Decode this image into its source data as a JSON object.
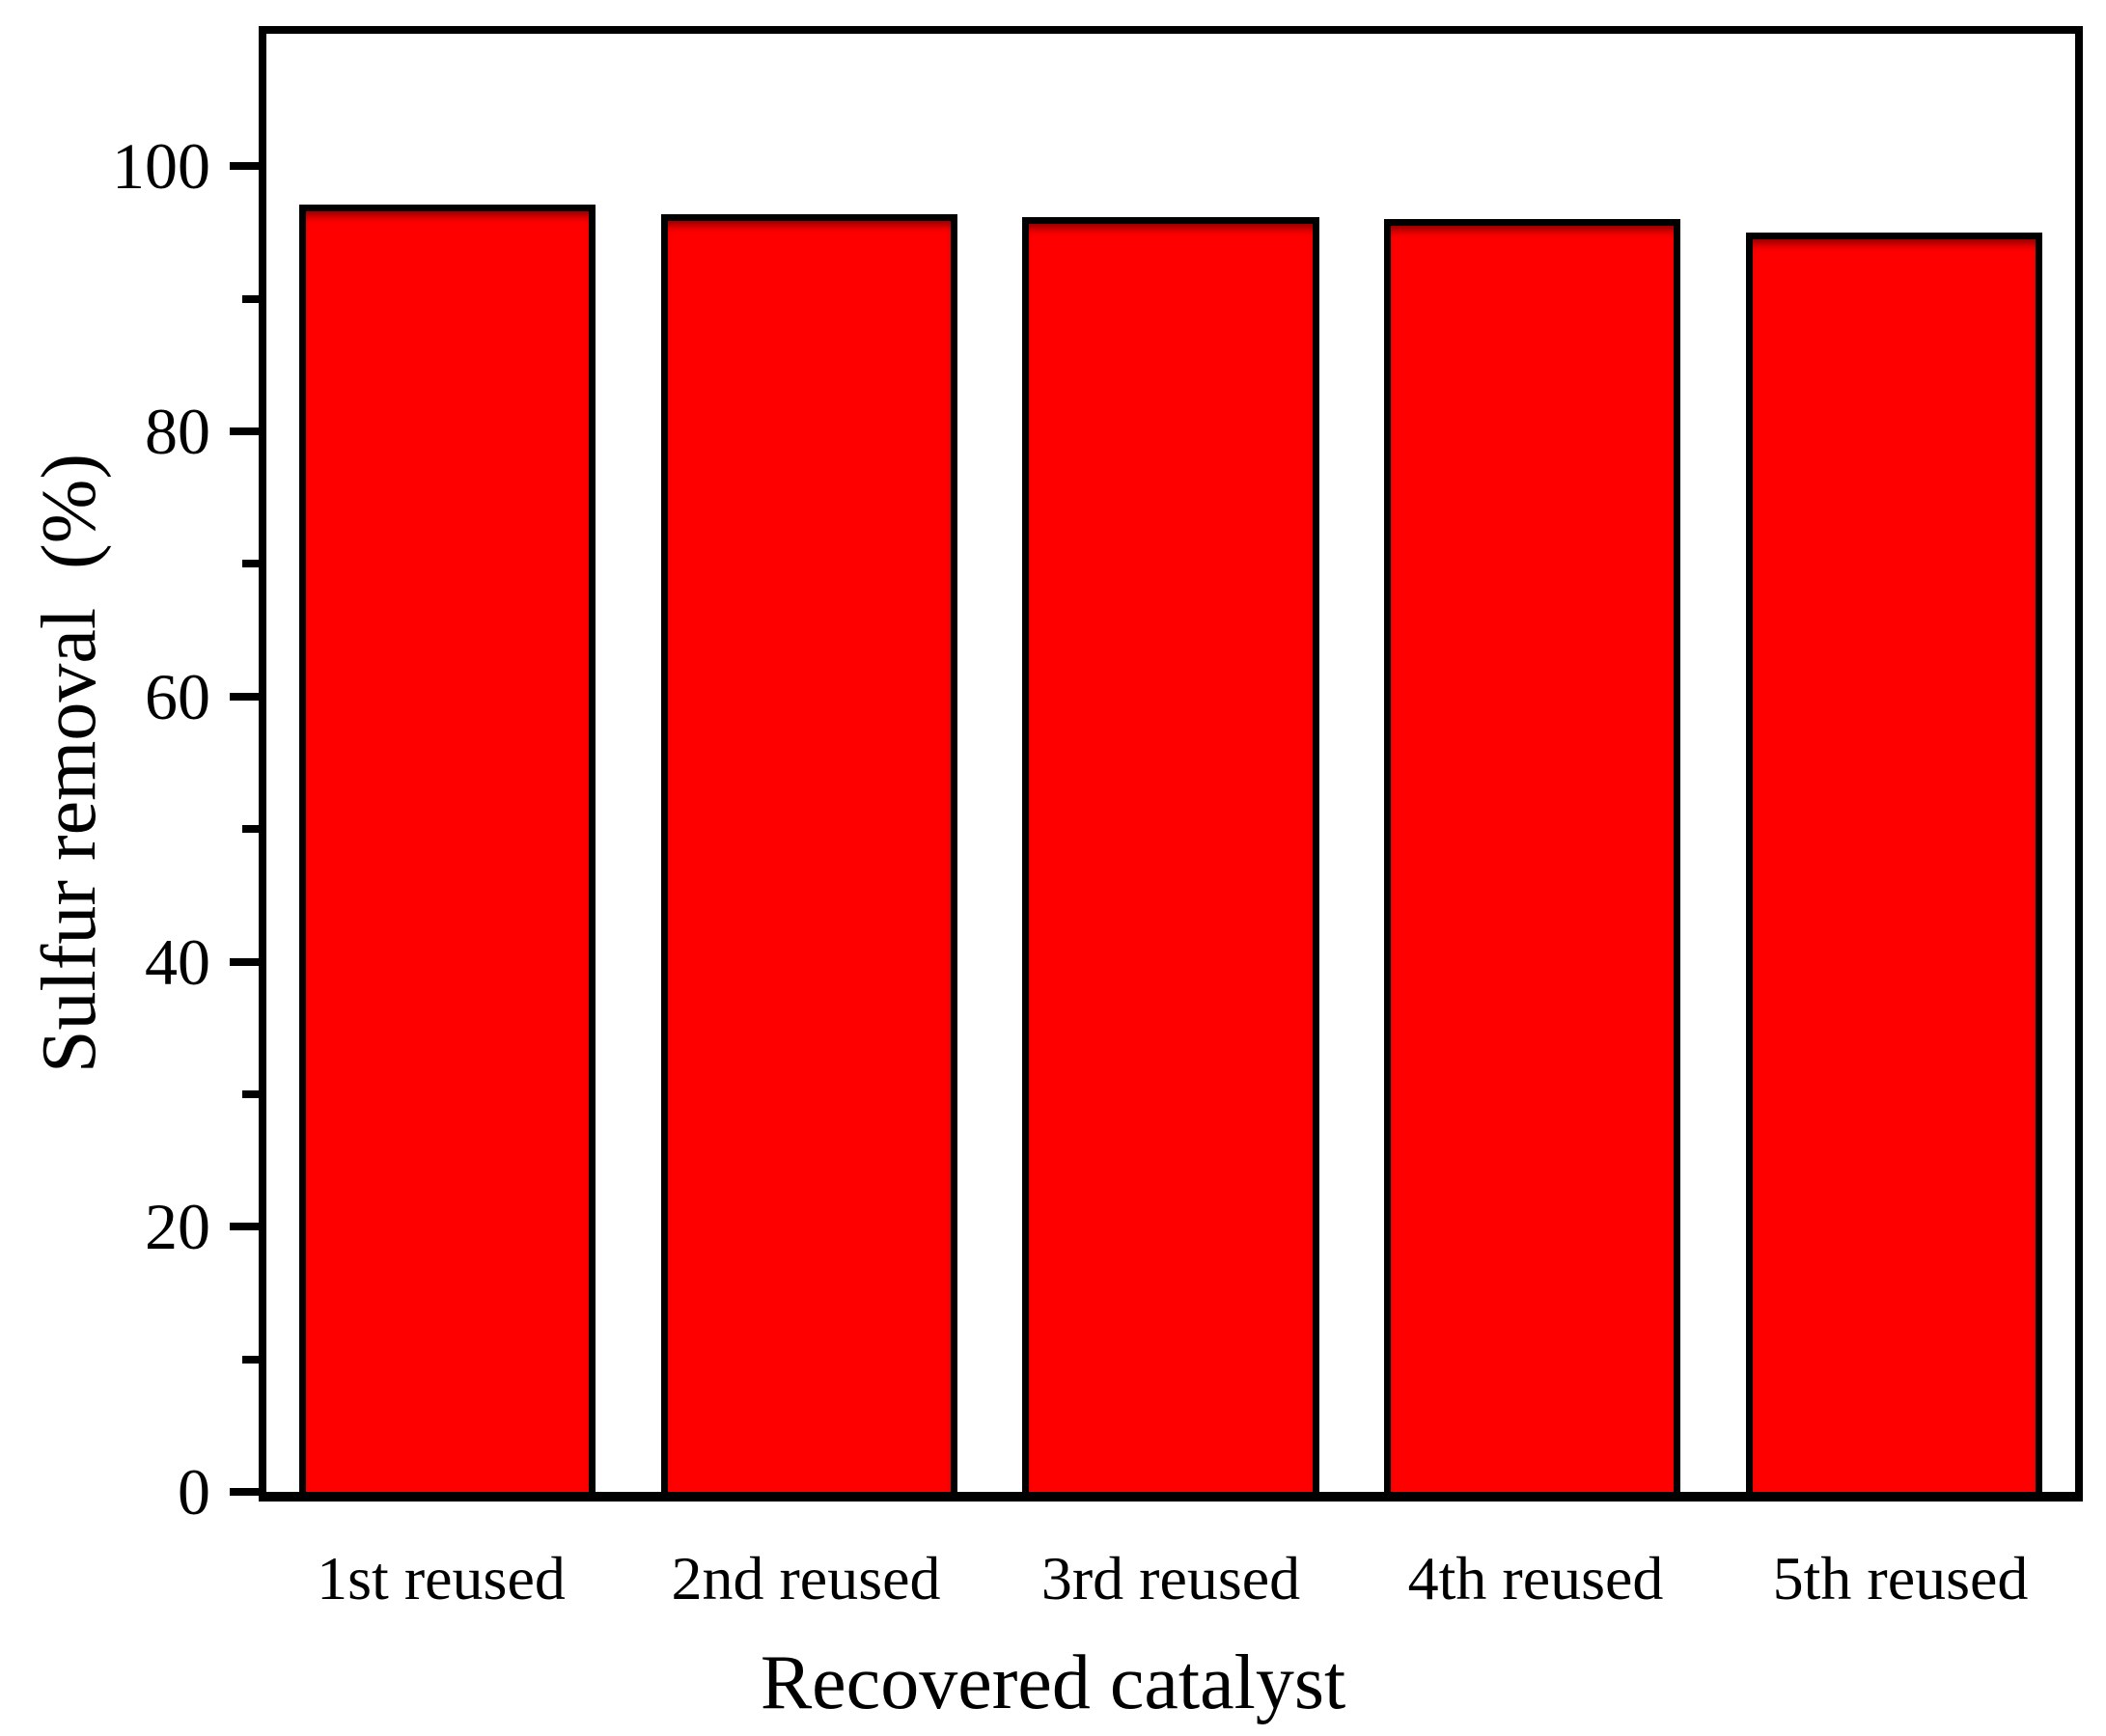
{
  "figure": {
    "background": "#ffffff",
    "text_color": "#000000"
  },
  "chart_data": {
    "type": "bar",
    "title": "",
    "categories": [
      "1st reused",
      "2nd reused",
      "3rd reused",
      "4th reused",
      "5th reused"
    ],
    "values": [
      97.1,
      96.4,
      96.2,
      96.0,
      95.0
    ],
    "xlabel": "Recovered catalyst",
    "ylabel": "Sulfur removal  (%)",
    "ylim": [
      0,
      110
    ],
    "y_major_ticks": [
      0,
      20,
      40,
      60,
      80,
      100
    ],
    "y_minor_ticks": [
      10,
      30,
      50,
      70,
      90
    ],
    "grid": false,
    "legend": "none",
    "bar_color": "#ff0000",
    "bar_border_color": "#000000",
    "axis_color": "#000000",
    "plot_background": "#ffffff"
  }
}
